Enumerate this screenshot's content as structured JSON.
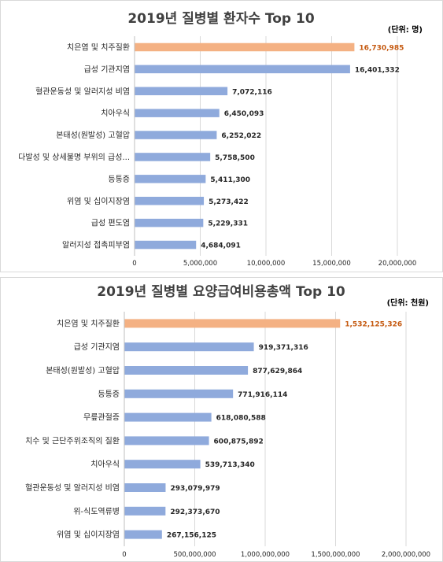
{
  "chart_data": [
    {
      "type": "bar",
      "orientation": "horizontal",
      "title": "2019년 질병별 환자수 Top 10",
      "unit": "(단위: 명)",
      "categories": [
        "치은염 및 치주질환",
        "급성 기관지염",
        "혈관운동성 및 알러지성 비염",
        "치아우식",
        "본태성(원발성) 고혈압",
        "다발성 및 상세불명 부위의 급성...",
        "등통증",
        "위염 및 십이지장염",
        "급성 편도염",
        "알러지성 접촉피부염"
      ],
      "values": [
        16730985,
        16401332,
        7072116,
        6450093,
        6252022,
        5758500,
        5411300,
        5273422,
        5229331,
        4684091
      ],
      "value_labels": [
        "16,730,985",
        "16,401,332",
        "7,072,116",
        "6,450,093",
        "6,252,022",
        "5,758,500",
        "5,411,300",
        "5,273,422",
        "5,229,331",
        "4,684,091"
      ],
      "highlight_index": 0,
      "xlim": [
        0,
        20000000
      ],
      "xticks": [
        0,
        5000000,
        10000000,
        15000000,
        20000000
      ],
      "xtick_labels": [
        "0",
        "5,000,000",
        "10,000,000",
        "15,000,000",
        "20,000,000"
      ],
      "grid": true,
      "colors": {
        "bar": "#8faadc",
        "highlight": "#f4b183",
        "highlight_label": "#c55a11"
      }
    },
    {
      "type": "bar",
      "orientation": "horizontal",
      "title": "2019년 질병별 요양급여비용총액 Top 10",
      "unit": "(단위: 천원)",
      "categories": [
        "치은염 및 치주질환",
        "급성 기관지염",
        "본태성(원발성) 고혈압",
        "등통증",
        "무릎관절증",
        "치수 및 근단주위조직의 질환",
        "치아우식",
        "혈관운동성 및 알러지성 비염",
        "위-식도역류병",
        "위염 및 십이지장염"
      ],
      "values": [
        1532125326,
        919371316,
        877629864,
        771916114,
        618080588,
        600875892,
        539713340,
        293079979,
        292373670,
        267156125
      ],
      "value_labels": [
        "1,532,125,326",
        "919,371,316",
        "877,629,864",
        "771,916,114",
        "618,080,588",
        "600,875,892",
        "539,713,340",
        "293,079,979",
        "292,373,670",
        "267,156,125"
      ],
      "highlight_index": 0,
      "xlim": [
        0,
        2000000000
      ],
      "xticks": [
        0,
        500000000,
        1000000000,
        1500000000,
        2000000000
      ],
      "xtick_labels": [
        "0",
        "500,000,000",
        "1,000,000,000",
        "1,500,000,000",
        "2,000,000,000"
      ],
      "grid": true,
      "colors": {
        "bar": "#8faadc",
        "highlight": "#f4b183",
        "highlight_label": "#c55a11"
      }
    }
  ]
}
